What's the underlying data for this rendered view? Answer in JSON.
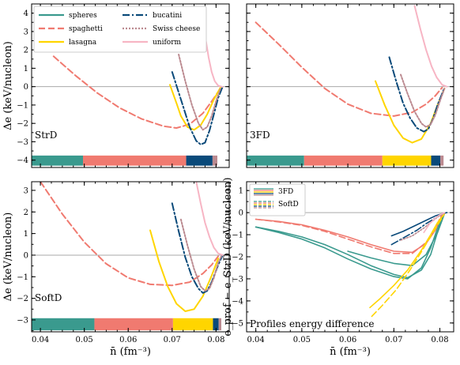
{
  "colors": {
    "spheres": "#3a9a8e",
    "spaghetti": "#f07a70",
    "lasagna": "#ffd500",
    "bucatini": "#0a4a7a",
    "swiss": "#bb8a90",
    "uniform": "#f7b5c4",
    "zeroline": "#aaaaaa"
  },
  "chart_data": [
    {
      "type": "line",
      "panel": "top-left",
      "tag": "StrD",
      "ylabel": "Δe (keV/nucleon)",
      "xlabel": "",
      "xlim": [
        0.038,
        0.083
      ],
      "ylim": [
        -4.4,
        4.5
      ],
      "xticks": [
        0.04,
        0.05,
        0.06,
        0.07,
        0.08
      ],
      "xtick_labels": [
        "",
        "",
        "",
        "",
        ""
      ],
      "yticks": [
        -4,
        -3,
        -2,
        -1,
        0,
        1,
        2,
        3,
        4
      ],
      "ytick_labels": [
        "−4",
        "−3",
        "−2",
        "−1",
        "0",
        "1",
        "2",
        "3",
        "4"
      ],
      "legend": {
        "location": "top-left",
        "entries": [
          {
            "label": "spheres",
            "series": "spheres",
            "dash": "solid"
          },
          {
            "label": "bucatini",
            "series": "bucatini",
            "dash": "dashdot"
          },
          {
            "label": "spaghetti",
            "series": "spaghetti",
            "dash": "dashed"
          },
          {
            "label": "Swiss cheese",
            "series": "swiss",
            "dash": "dotted"
          },
          {
            "label": "lasagna",
            "series": "lasagna",
            "dash": "solid"
          },
          {
            "label": "uniform",
            "series": "uniform",
            "dash": "solid"
          }
        ]
      },
      "phase_bar": {
        "y_range": [
          -4.3,
          -3.75
        ],
        "segments": [
          {
            "series": "spheres",
            "x": [
              0.038,
              0.0497
            ]
          },
          {
            "series": "spaghetti",
            "x": [
              0.0497,
              0.0732
            ]
          },
          {
            "series": "bucatini",
            "x": [
              0.0732,
              0.0792
            ]
          },
          {
            "series": "swiss",
            "x": [
              0.0792,
              0.0803
            ]
          }
        ]
      },
      "series": [
        {
          "key": "spaghetti",
          "dash": "dashed",
          "x": [
            0.043,
            0.048,
            0.053,
            0.058,
            0.063,
            0.068,
            0.071,
            0.074,
            0.077,
            0.079,
            0.081
          ],
          "y": [
            1.65,
            0.6,
            -0.35,
            -1.15,
            -1.75,
            -2.15,
            -2.25,
            -2.05,
            -1.45,
            -0.8,
            -0.1
          ]
        },
        {
          "key": "lasagna",
          "dash": "solid",
          "x": [
            0.0695,
            0.071,
            0.072,
            0.0735,
            0.075,
            0.0765,
            0.078,
            0.0795,
            0.081
          ],
          "y": [
            0.1,
            -0.9,
            -1.6,
            -2.2,
            -2.35,
            -2.1,
            -1.5,
            -0.7,
            -0.05
          ]
        },
        {
          "key": "bucatini",
          "dash": "dashdot",
          "x": [
            0.07,
            0.072,
            0.074,
            0.0755,
            0.0765,
            0.0775,
            0.0785,
            0.0795,
            0.0805,
            0.0815
          ],
          "y": [
            0.8,
            -0.7,
            -2.2,
            -2.95,
            -3.15,
            -3.05,
            -2.4,
            -1.5,
            -0.6,
            0.0
          ]
        },
        {
          "key": "swiss",
          "dash": "dotted",
          "x": [
            0.0715,
            0.073,
            0.0745,
            0.076,
            0.077,
            0.078,
            0.079,
            0.08,
            0.081
          ],
          "y": [
            1.75,
            0.3,
            -1.0,
            -2.0,
            -2.35,
            -2.2,
            -1.6,
            -0.8,
            -0.1
          ]
        },
        {
          "key": "uniform",
          "dash": "solid",
          "x": [
            0.0775,
            0.0783,
            0.079,
            0.0797,
            0.0805,
            0.0815
          ],
          "y": [
            2.8,
            1.6,
            0.8,
            0.3,
            0.05,
            -0.02
          ]
        }
      ]
    },
    {
      "type": "line",
      "panel": "top-right",
      "tag": "3FD",
      "ylabel": "",
      "xlabel": "",
      "xlim": [
        0.038,
        0.083
      ],
      "ylim": [
        -4.4,
        4.5
      ],
      "xticks": [
        0.04,
        0.05,
        0.06,
        0.07,
        0.08
      ],
      "xtick_labels": [
        "",
        "",
        "",
        "",
        ""
      ],
      "yticks": [
        -4,
        -3,
        -2,
        -1,
        0,
        1,
        2,
        3,
        4
      ],
      "ytick_labels": [
        "",
        "",
        "",
        "",
        "",
        "",
        "",
        "",
        ""
      ],
      "phase_bar": {
        "y_range": [
          -4.3,
          -3.75
        ],
        "segments": [
          {
            "series": "spheres",
            "x": [
              0.038,
              0.0505
            ]
          },
          {
            "series": "spaghetti",
            "x": [
              0.0505,
              0.0675
            ]
          },
          {
            "series": "lasagna",
            "x": [
              0.0675,
              0.0781
            ]
          },
          {
            "series": "bucatini",
            "x": [
              0.0781,
              0.0801
            ]
          },
          {
            "series": "swiss",
            "x": [
              0.0801,
              0.0808
            ]
          }
        ]
      },
      "series": [
        {
          "key": "spaghetti",
          "dash": "dashed",
          "x": [
            0.04,
            0.045,
            0.05,
            0.055,
            0.06,
            0.065,
            0.07,
            0.074,
            0.077,
            0.079,
            0.0805
          ],
          "y": [
            3.5,
            2.3,
            1.05,
            -0.1,
            -0.95,
            -1.45,
            -1.6,
            -1.4,
            -0.95,
            -0.5,
            -0.05
          ]
        },
        {
          "key": "lasagna",
          "dash": "solid",
          "x": [
            0.066,
            0.068,
            0.07,
            0.072,
            0.074,
            0.076,
            0.078,
            0.0795,
            0.081
          ],
          "y": [
            0.3,
            -1.0,
            -2.1,
            -2.8,
            -3.05,
            -2.85,
            -2.0,
            -1.0,
            -0.1
          ]
        },
        {
          "key": "bucatini",
          "dash": "dashdot",
          "x": [
            0.069,
            0.0705,
            0.072,
            0.0735,
            0.075,
            0.0765,
            0.0775,
            0.0785,
            0.0795,
            0.081
          ],
          "y": [
            1.6,
            0.3,
            -0.9,
            -1.7,
            -2.25,
            -2.45,
            -2.3,
            -1.75,
            -1.0,
            -0.05
          ]
        },
        {
          "key": "swiss",
          "dash": "dotted",
          "x": [
            0.0715,
            0.073,
            0.0745,
            0.076,
            0.077,
            0.078,
            0.079,
            0.08,
            0.081
          ],
          "y": [
            0.65,
            -0.4,
            -1.35,
            -2.0,
            -2.2,
            -2.05,
            -1.55,
            -0.8,
            -0.1
          ]
        },
        {
          "key": "uniform",
          "dash": "solid",
          "x": [
            0.0745,
            0.0758,
            0.077,
            0.0782,
            0.0793,
            0.0805,
            0.0815
          ],
          "y": [
            4.4,
            3.1,
            2.0,
            1.1,
            0.5,
            0.1,
            0.0
          ]
        }
      ]
    },
    {
      "type": "line",
      "panel": "bottom-left",
      "tag": "SoftD",
      "ylabel": "Δe (keV/nucleon)",
      "xlabel": "n̄ (fm⁻³)",
      "xlim": [
        0.038,
        0.083
      ],
      "ylim": [
        -3.55,
        3.4
      ],
      "xticks": [
        0.04,
        0.05,
        0.06,
        0.07,
        0.08
      ],
      "xtick_labels": [
        "0.04",
        "0.05",
        "0.06",
        "0.07",
        "0.08"
      ],
      "yticks": [
        -3,
        -2,
        -1,
        0,
        1,
        2,
        3
      ],
      "ytick_labels": [
        "−3",
        "−2",
        "−1",
        "0",
        "1",
        "2",
        "3"
      ],
      "phase_bar": {
        "y_range": [
          -3.48,
          -2.92
        ],
        "segments": [
          {
            "series": "spheres",
            "x": [
              0.038,
              0.0523
            ]
          },
          {
            "series": "spaghetti",
            "x": [
              0.0523,
              0.0702
            ]
          },
          {
            "series": "lasagna",
            "x": [
              0.0702,
              0.0793
            ]
          },
          {
            "series": "bucatini",
            "x": [
              0.0793,
              0.0806
            ]
          },
          {
            "series": "swiss",
            "x": [
              0.0806,
              0.0812
            ]
          }
        ]
      },
      "series": [
        {
          "key": "spaghetti",
          "dash": "dashed",
          "x": [
            0.04,
            0.045,
            0.05,
            0.055,
            0.06,
            0.065,
            0.07,
            0.074,
            0.077,
            0.079,
            0.0805
          ],
          "y": [
            3.4,
            1.9,
            0.6,
            -0.4,
            -1.05,
            -1.35,
            -1.4,
            -1.25,
            -0.85,
            -0.45,
            -0.05
          ]
        },
        {
          "key": "lasagna",
          "dash": "solid",
          "x": [
            0.065,
            0.067,
            0.069,
            0.071,
            0.073,
            0.075,
            0.077,
            0.079,
            0.0805
          ],
          "y": [
            1.15,
            -0.3,
            -1.45,
            -2.25,
            -2.6,
            -2.5,
            -1.9,
            -0.95,
            -0.15
          ]
        },
        {
          "key": "bucatini",
          "dash": "dashdot",
          "x": [
            0.07,
            0.0715,
            0.073,
            0.0745,
            0.076,
            0.077,
            0.078,
            0.079,
            0.0805,
            0.0815
          ],
          "y": [
            2.4,
            1.1,
            -0.1,
            -1.0,
            -1.55,
            -1.75,
            -1.65,
            -1.25,
            -0.45,
            0.0
          ]
        },
        {
          "key": "swiss",
          "dash": "dotted",
          "x": [
            0.072,
            0.0735,
            0.075,
            0.0765,
            0.0775,
            0.0785,
            0.0795,
            0.0805,
            0.0812
          ],
          "y": [
            1.65,
            0.45,
            -0.65,
            -1.45,
            -1.65,
            -1.55,
            -1.05,
            -0.35,
            -0.05
          ]
        },
        {
          "key": "uniform",
          "dash": "solid",
          "x": [
            0.0755,
            0.0765,
            0.0775,
            0.0785,
            0.0795,
            0.0805,
            0.0815
          ],
          "y": [
            3.4,
            2.4,
            1.5,
            0.85,
            0.35,
            0.08,
            0.0
          ]
        }
      ]
    },
    {
      "type": "line",
      "panel": "bottom-right",
      "tag": "Profiles energy difference",
      "ylabel": "e_prof − e_StrD (keV/nucleon)",
      "xlabel": "n̄ (fm⁻³)",
      "xlim": [
        0.038,
        0.083
      ],
      "ylim": [
        -5.4,
        1.4
      ],
      "xticks": [
        0.04,
        0.05,
        0.06,
        0.07,
        0.08
      ],
      "xtick_labels": [
        "0.04",
        "0.05",
        "0.06",
        "0.07",
        "0.08"
      ],
      "yticks": [
        -5,
        -4,
        -3,
        -2,
        -1,
        0,
        1
      ],
      "ytick_labels": [
        "−5",
        "−4",
        "−3",
        "−2",
        "−1",
        "0",
        "1"
      ],
      "legend": {
        "location": "top-left",
        "entries": [
          {
            "label": "3FD",
            "style": "multi-solid"
          },
          {
            "label": "SoftD",
            "style": "multi-dashed"
          }
        ]
      },
      "series": [
        {
          "key": "spheres",
          "dash": "solid",
          "x": [
            0.04,
            0.045,
            0.05,
            0.055,
            0.06,
            0.065,
            0.07,
            0.073,
            0.076,
            0.078,
            0.0805
          ],
          "y": [
            -0.65,
            -0.85,
            -1.1,
            -1.45,
            -1.9,
            -2.4,
            -2.8,
            -2.95,
            -2.6,
            -1.9,
            -0.2
          ]
        },
        {
          "key": "spheres",
          "dash": "solid",
          "x": [
            0.04,
            0.045,
            0.05,
            0.055,
            0.06,
            0.065,
            0.07,
            0.073,
            0.076,
            0.078,
            0.0805
          ],
          "y": [
            -0.65,
            -0.9,
            -1.2,
            -1.6,
            -2.1,
            -2.55,
            -2.9,
            -3.0,
            -2.5,
            -1.6,
            -0.1
          ]
        },
        {
          "key": "spheres",
          "dash": "solid",
          "x": [
            0.06,
            0.065,
            0.07,
            0.074,
            0.077,
            0.0795,
            0.081
          ],
          "y": [
            -1.75,
            -2.05,
            -2.3,
            -2.4,
            -1.9,
            -0.9,
            -0.05
          ]
        },
        {
          "key": "spaghetti",
          "dash": "solid",
          "x": [
            0.04,
            0.045,
            0.05,
            0.055,
            0.06,
            0.065,
            0.07,
            0.074,
            0.077,
            0.079,
            0.0805
          ],
          "y": [
            -0.3,
            -0.4,
            -0.55,
            -0.8,
            -1.1,
            -1.45,
            -1.75,
            -1.8,
            -1.4,
            -0.8,
            -0.1
          ]
        },
        {
          "key": "spaghetti",
          "dash": "dashed",
          "x": [
            0.04,
            0.045,
            0.05,
            0.055,
            0.06,
            0.065,
            0.07,
            0.074,
            0.077,
            0.079,
            0.0805
          ],
          "y": [
            -0.3,
            -0.42,
            -0.58,
            -0.85,
            -1.2,
            -1.55,
            -1.85,
            -1.85,
            -1.35,
            -0.7,
            -0.05
          ]
        },
        {
          "key": "lasagna",
          "dash": "solid",
          "x": [
            0.0648,
            0.067,
            0.07,
            0.073,
            0.076,
            0.078,
            0.0795,
            0.081
          ],
          "y": [
            -4.3,
            -3.9,
            -3.3,
            -2.6,
            -1.7,
            -1.0,
            -0.45,
            -0.05
          ]
        },
        {
          "key": "lasagna",
          "dash": "dashed",
          "x": [
            0.0652,
            0.0675,
            0.0705,
            0.0735,
            0.0765,
            0.0785,
            0.08,
            0.081
          ],
          "y": [
            -4.7,
            -4.2,
            -3.5,
            -2.6,
            -1.6,
            -0.9,
            -0.4,
            -0.05
          ]
        },
        {
          "key": "bucatini",
          "dash": "solid",
          "x": [
            0.0695,
            0.072,
            0.075,
            0.077,
            0.079,
            0.0805,
            0.0815
          ],
          "y": [
            -1.05,
            -0.85,
            -0.55,
            -0.35,
            -0.15,
            -0.05,
            0.0
          ]
        },
        {
          "key": "bucatini",
          "dash": "dashdot",
          "x": [
            0.0695,
            0.072,
            0.075,
            0.077,
            0.079,
            0.0805,
            0.0815
          ],
          "y": [
            -1.45,
            -1.15,
            -0.8,
            -0.5,
            -0.25,
            -0.05,
            0.0
          ]
        },
        {
          "key": "swiss",
          "dash": "dotted",
          "x": [
            0.0715,
            0.074,
            0.0765,
            0.078,
            0.0795,
            0.081
          ],
          "y": [
            -1.25,
            -1.05,
            -0.7,
            -0.45,
            -0.2,
            -0.02
          ]
        },
        {
          "key": "uniform",
          "dash": "solid",
          "x": [
            0.0765,
            0.0778,
            0.079,
            0.08,
            0.081
          ],
          "y": [
            -0.9,
            -0.5,
            -0.25,
            -0.1,
            0.0
          ]
        }
      ]
    }
  ]
}
